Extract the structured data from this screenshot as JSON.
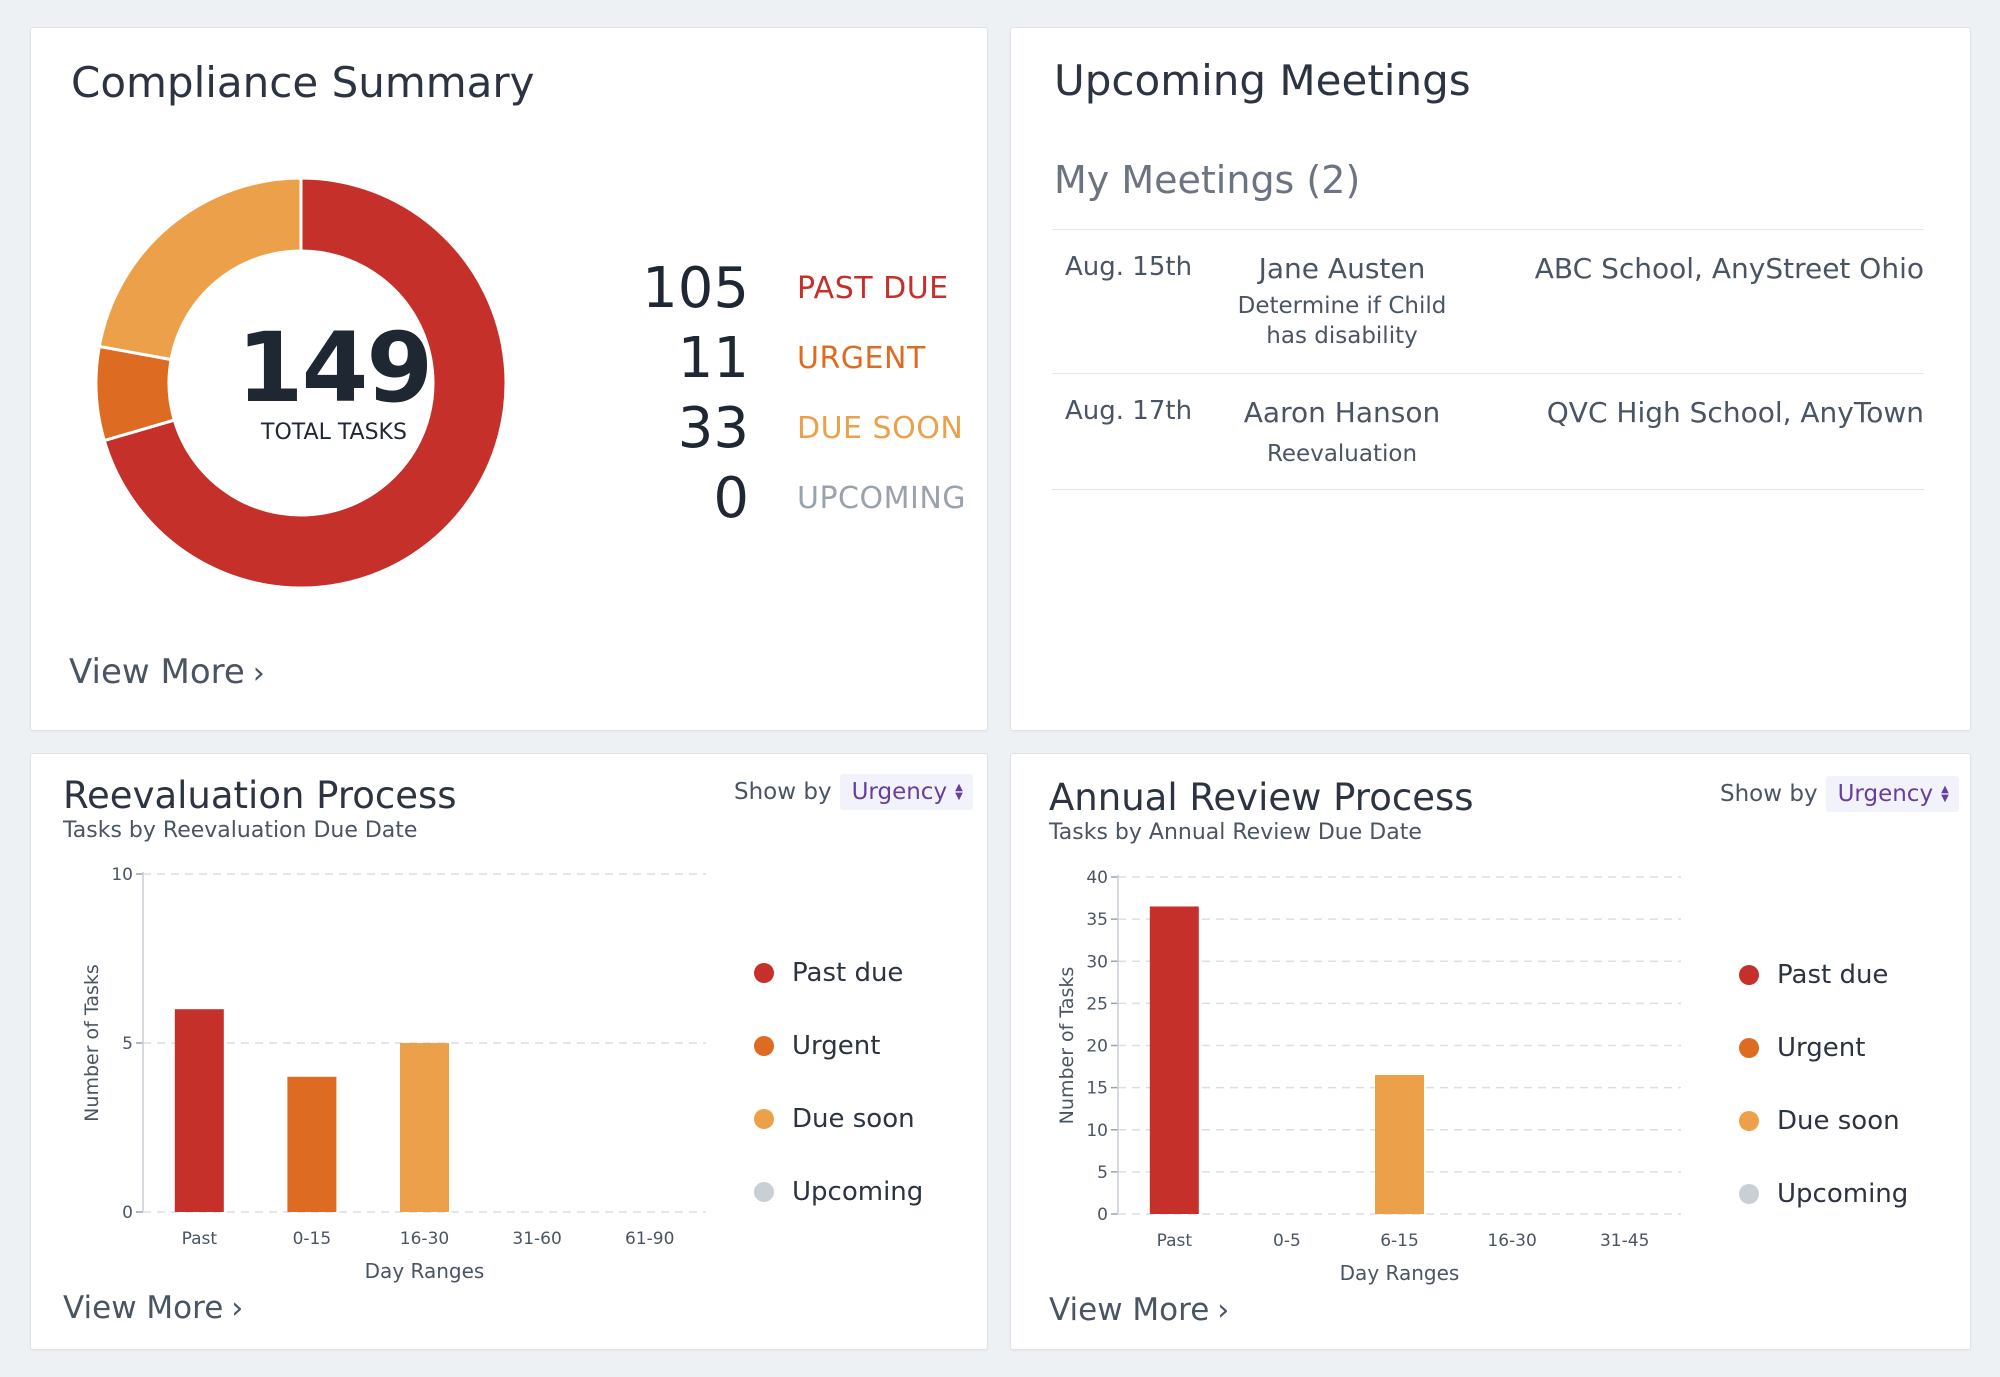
{
  "colors": {
    "past_due": "#c6302b",
    "urgent": "#dd6c22",
    "due_soon": "#eda04a",
    "upcoming": "#c8d0d6"
  },
  "compliance": {
    "title": "Compliance Summary",
    "total": "149",
    "total_label": "TOTAL TASKS",
    "stats": [
      {
        "value": 105,
        "display": "105",
        "label": "PAST DUE",
        "color": "#c6302b"
      },
      {
        "value": 11,
        "display": "11",
        "label": "URGENT",
        "color": "#dd6c22"
      },
      {
        "value": 33,
        "display": "33",
        "label": "DUE SOON",
        "color": "#eda04a"
      },
      {
        "value": 0,
        "display": "0",
        "label": "UPCOMING",
        "color": "#9aa3ab"
      }
    ],
    "view_more": "View More"
  },
  "meetings": {
    "title": "Upcoming Meetings",
    "subtitle": "My Meetings (2)",
    "items": [
      {
        "date": "Aug. 15th",
        "name": "Jane Austen",
        "desc_1": "Determine if Child",
        "desc_2": "has disability",
        "location": "ABC School, AnyStreet Ohio"
      },
      {
        "date": "Aug. 17th",
        "name": "Aaron Hanson",
        "desc_1": "Reevaluation",
        "desc_2": "",
        "location": "QVC High School, AnyTown"
      }
    ]
  },
  "reeval": {
    "title": "Reevaluation Process",
    "subtitle": "Tasks by Reevaluation Due Date",
    "show_by_label": "Show by",
    "show_by_value": "Urgency",
    "view_more": "View More"
  },
  "annual": {
    "title": "Annual Review Process",
    "subtitle": "Tasks by Annual Review Due Date",
    "show_by_label": "Show by",
    "show_by_value": "Urgency",
    "view_more": "View More"
  },
  "legend": [
    {
      "label": "Past due",
      "color": "#c6302b"
    },
    {
      "label": "Urgent",
      "color": "#dd6c22"
    },
    {
      "label": "Due soon",
      "color": "#eda04a"
    },
    {
      "label": "Upcoming",
      "color": "#c8d0d6"
    }
  ],
  "chart_data": [
    {
      "type": "pie",
      "labels": [
        "PAST DUE",
        "URGENT",
        "DUE SOON",
        "UPCOMING"
      ],
      "values": [
        105,
        11,
        33,
        0
      ],
      "colors": [
        "#c6302b",
        "#dd6c22",
        "#eda04a",
        "#c8d0d6"
      ]
    },
    {
      "type": "bar",
      "categories": [
        "Past",
        "0-15",
        "16-30",
        "31-60",
        "61-90"
      ],
      "values": [
        6,
        4,
        5,
        0,
        0
      ],
      "bar_colors": [
        "#c6302b",
        "#dd6c22",
        "#eda04a",
        "#c8d0d6",
        "#c8d0d6"
      ],
      "ylim": [
        0,
        10
      ],
      "yticks": [
        0,
        5,
        10
      ],
      "xlabel": "Day Ranges",
      "ylabel": "Number of Tasks",
      "grid": true,
      "legend": "right"
    },
    {
      "type": "bar",
      "categories": [
        "Past",
        "0-5",
        "6-15",
        "16-30",
        "31-45"
      ],
      "values": [
        36.5,
        0,
        16.5,
        0,
        0
      ],
      "bar_colors": [
        "#c6302b",
        "#dd6c22",
        "#eda04a",
        "#c8d0d6",
        "#c8d0d6"
      ],
      "ylim": [
        0,
        40
      ],
      "yticks": [
        0,
        5,
        10,
        15,
        20,
        25,
        30,
        35,
        40
      ],
      "xlabel": "Day Ranges",
      "ylabel": "Number of Tasks",
      "grid": true,
      "legend": "right"
    }
  ]
}
